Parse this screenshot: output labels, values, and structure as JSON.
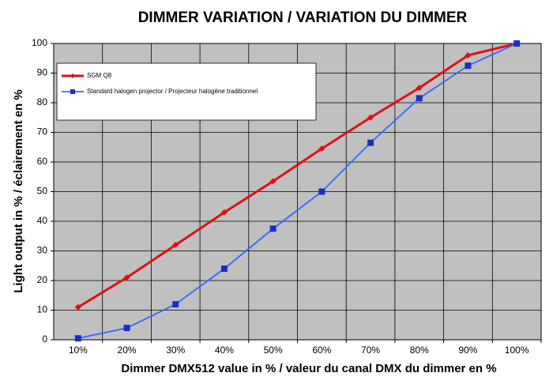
{
  "chart_data": {
    "type": "line",
    "title": "DIMMER VARIATION / VARIATION DU DIMMER",
    "x_label": "Dimmer DMX512 value in % / valeur du canal DMX du dimmer en %",
    "y_label": "Light output in % / éclairement en %",
    "categories": [
      "10%",
      "20%",
      "30%",
      "40%",
      "50%",
      "60%",
      "70%",
      "80%",
      "90%",
      "100%"
    ],
    "series": [
      {
        "name": "SGM Q8",
        "color": "#dd1111",
        "values": [
          11,
          21,
          32,
          43,
          53.5,
          64.5,
          75,
          85,
          96,
          100
        ]
      },
      {
        "name": "Standard halogen projector / Projecteur halogène traditionnel",
        "color": "#3366ff",
        "values": [
          0.5,
          4,
          12,
          24,
          37.5,
          50,
          66.5,
          81.5,
          92.5,
          100
        ]
      }
    ],
    "ylim": [
      0,
      100
    ],
    "yticks": [
      0,
      10,
      20,
      30,
      40,
      50,
      60,
      70,
      80,
      90,
      100
    ],
    "grid": true,
    "legend": "upper left"
  }
}
